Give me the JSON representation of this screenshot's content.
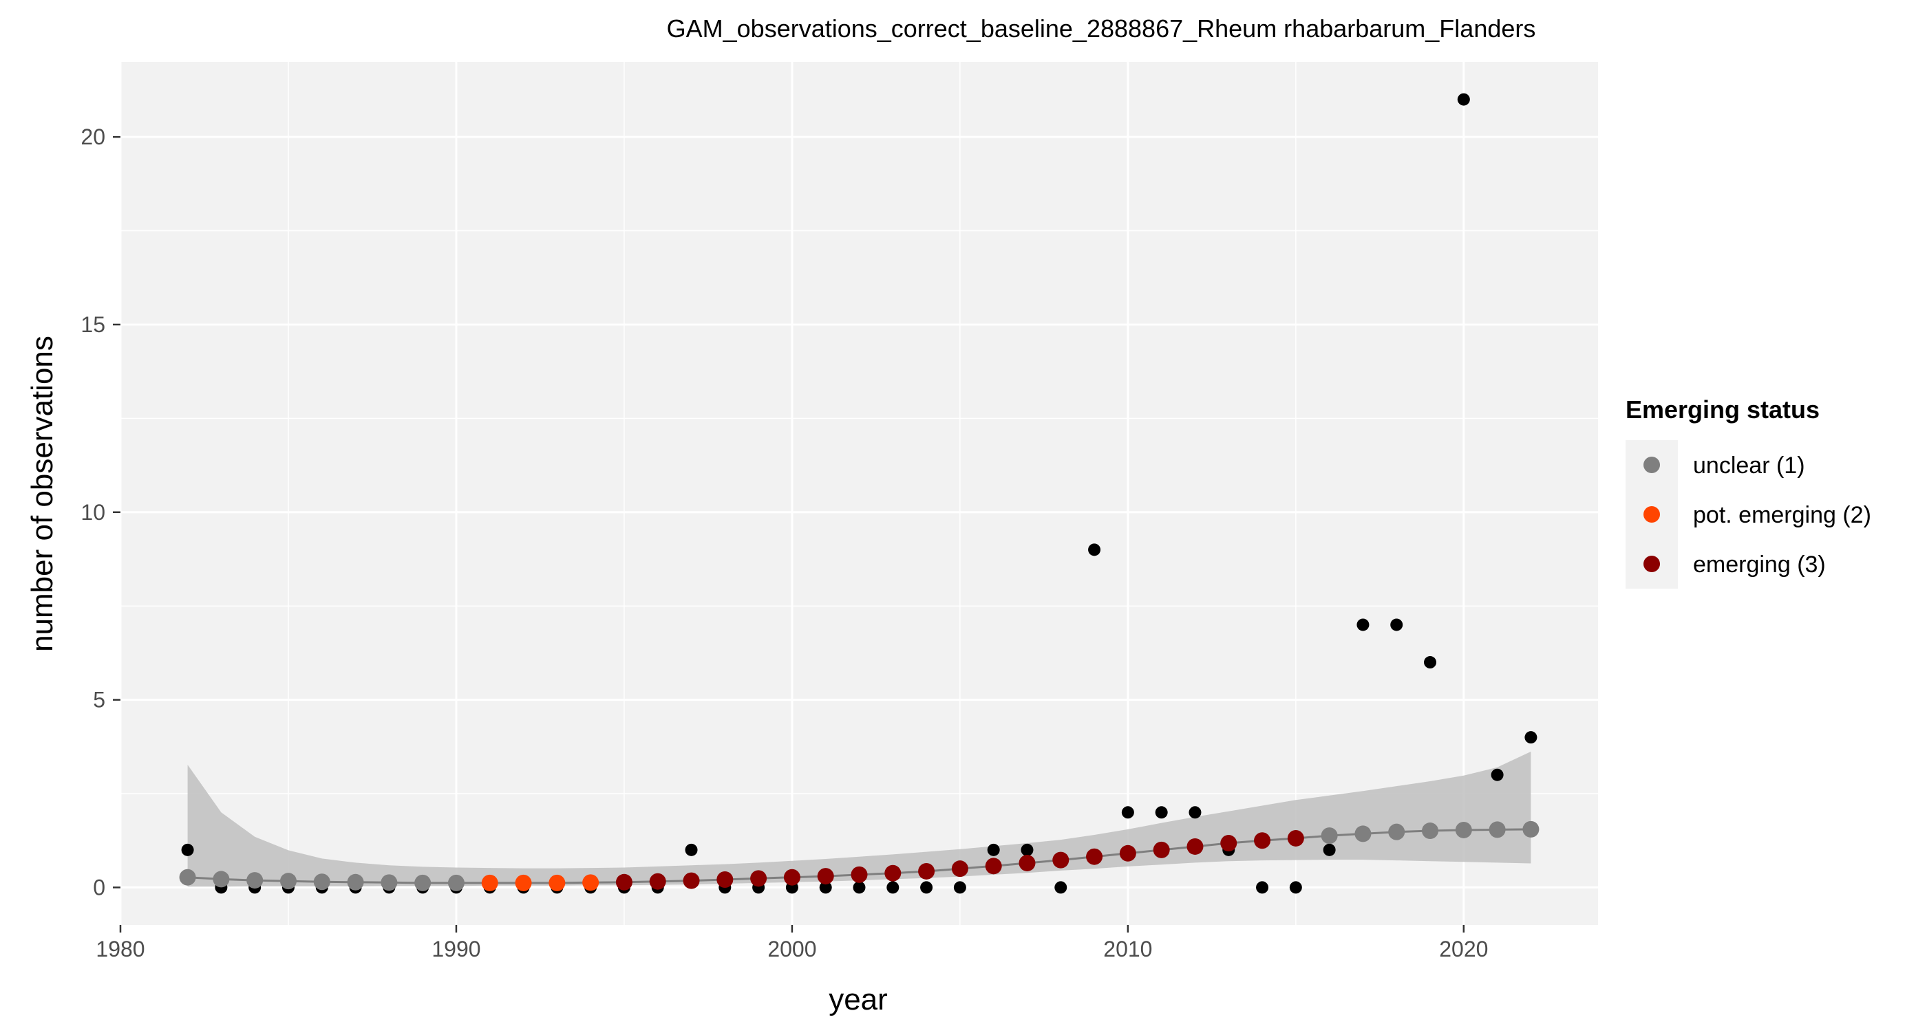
{
  "chart_data": {
    "type": "scatter",
    "title": "GAM_observations_correct_baseline_2888867_Rheum rhabarbarum_Flanders",
    "xlabel": "year",
    "ylabel": "number of observations",
    "xlim": [
      1980,
      2024
    ],
    "ylim": [
      -1,
      22
    ],
    "x_ticks": [
      1980,
      1990,
      2000,
      2010,
      2020
    ],
    "y_ticks": [
      0,
      5,
      10,
      15,
      20
    ],
    "grid": true,
    "legend": {
      "title": "Emerging status",
      "position": "right",
      "entries": [
        {
          "label": "unclear (1)",
          "color": "#7f7f7f"
        },
        {
          "label": "pot. emerging (2)",
          "color": "#ff4500"
        },
        {
          "label": "emerging (3)",
          "color": "#8b0000"
        }
      ]
    },
    "observations": {
      "color": "#000000",
      "x": [
        1982,
        1983,
        1984,
        1985,
        1986,
        1987,
        1988,
        1989,
        1990,
        1991,
        1992,
        1993,
        1994,
        1995,
        1996,
        1997,
        1998,
        1999,
        2000,
        2001,
        2002,
        2003,
        2004,
        2005,
        2006,
        2007,
        2008,
        2009,
        2010,
        2011,
        2012,
        2013,
        2014,
        2015,
        2016,
        2017,
        2018,
        2019,
        2020,
        2021,
        2022
      ],
      "y": [
        1,
        0,
        0,
        0,
        0,
        0,
        0,
        0,
        0,
        0,
        0,
        0,
        0,
        0,
        0,
        1,
        0,
        0,
        0,
        0,
        0,
        0,
        0,
        0,
        1,
        1,
        0,
        9,
        2,
        2,
        2,
        1,
        0,
        0,
        1,
        7,
        7,
        6,
        21,
        3,
        4
      ]
    },
    "gam_fit": {
      "line_color": "#7f7f7f",
      "band_color": "#c0c0c0",
      "x": [
        1982,
        1983,
        1984,
        1985,
        1986,
        1987,
        1988,
        1989,
        1990,
        1991,
        1992,
        1993,
        1994,
        1995,
        1996,
        1997,
        1998,
        1999,
        2000,
        2001,
        2002,
        2003,
        2004,
        2005,
        2006,
        2007,
        2008,
        2009,
        2010,
        2011,
        2012,
        2013,
        2014,
        2015,
        2016,
        2017,
        2018,
        2019,
        2020,
        2021,
        2022
      ],
      "fit": [
        0.27,
        0.22,
        0.19,
        0.17,
        0.15,
        0.14,
        0.13,
        0.12,
        0.12,
        0.12,
        0.12,
        0.12,
        0.13,
        0.14,
        0.16,
        0.18,
        0.21,
        0.24,
        0.27,
        0.3,
        0.34,
        0.38,
        0.43,
        0.5,
        0.57,
        0.65,
        0.73,
        0.82,
        0.91,
        1.0,
        1.09,
        1.18,
        1.25,
        1.31,
        1.38,
        1.43,
        1.48,
        1.51,
        1.53,
        1.54,
        1.55
      ],
      "lower": [
        0.02,
        0.02,
        0.03,
        0.03,
        0.03,
        0.03,
        0.04,
        0.04,
        0.04,
        0.05,
        0.05,
        0.05,
        0.06,
        0.06,
        0.07,
        0.08,
        0.1,
        0.12,
        0.14,
        0.16,
        0.19,
        0.22,
        0.25,
        0.29,
        0.34,
        0.39,
        0.45,
        0.5,
        0.56,
        0.61,
        0.66,
        0.7,
        0.72,
        0.73,
        0.74,
        0.74,
        0.72,
        0.7,
        0.68,
        0.66,
        0.64
      ],
      "upper": [
        3.27,
        2.0,
        1.35,
        0.99,
        0.77,
        0.66,
        0.59,
        0.55,
        0.53,
        0.52,
        0.51,
        0.51,
        0.52,
        0.53,
        0.56,
        0.59,
        0.62,
        0.66,
        0.71,
        0.76,
        0.82,
        0.88,
        0.95,
        1.02,
        1.1,
        1.18,
        1.27,
        1.4,
        1.55,
        1.72,
        1.88,
        2.03,
        2.18,
        2.33,
        2.45,
        2.57,
        2.7,
        2.83,
        2.98,
        3.2,
        3.62
      ],
      "status": [
        1,
        1,
        1,
        1,
        1,
        1,
        1,
        1,
        1,
        2,
        2,
        2,
        2,
        3,
        3,
        3,
        3,
        3,
        3,
        3,
        3,
        3,
        3,
        3,
        3,
        3,
        3,
        3,
        3,
        3,
        3,
        3,
        3,
        3,
        1,
        1,
        1,
        1,
        1,
        1,
        1
      ]
    }
  }
}
